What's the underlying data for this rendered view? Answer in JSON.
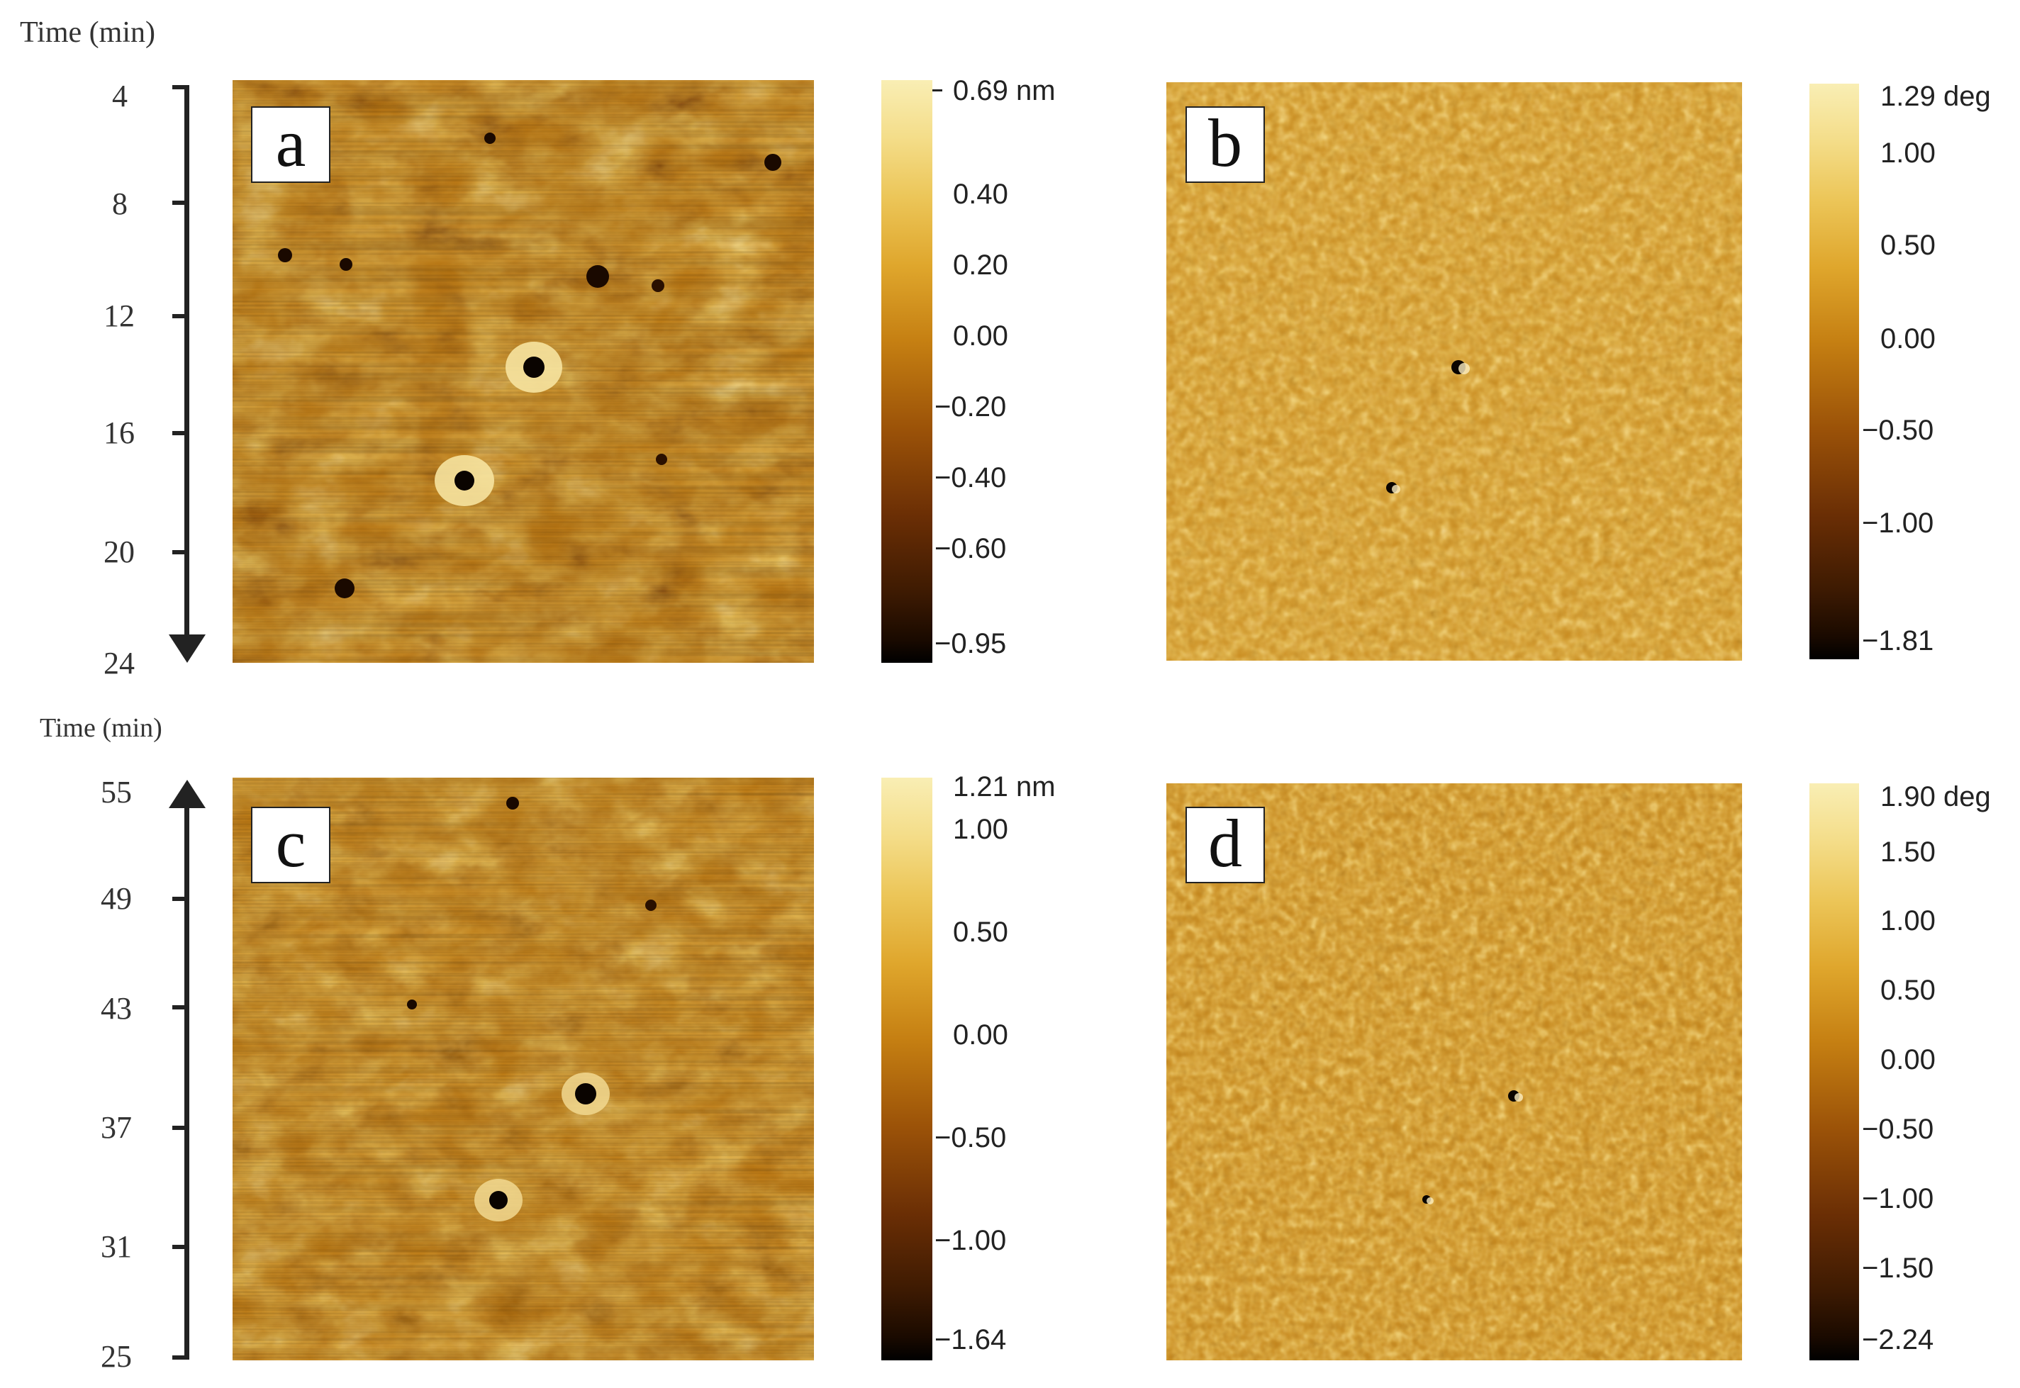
{
  "top_time_axis": {
    "title": "Time (min)",
    "ticks": [
      "4",
      "8",
      "12",
      "16",
      "20",
      "24"
    ],
    "direction": "down"
  },
  "bottom_time_axis": {
    "title": "Time (min)",
    "ticks": [
      "55",
      "49",
      "43",
      "37",
      "31",
      "25"
    ],
    "direction": "up"
  },
  "panels": [
    {
      "label": "a",
      "type": "height",
      "colorbar": [
        "0.69 nm",
        "0.40",
        "0.20",
        "0.00",
        "−0.20",
        "−0.40",
        "−0.60",
        "−0.95"
      ]
    },
    {
      "label": "b",
      "type": "phase",
      "colorbar": [
        "1.29 deg",
        "1.00",
        "0.50",
        "0.00",
        "−0.50",
        "−1.00",
        "−1.81"
      ]
    },
    {
      "label": "c",
      "type": "height",
      "colorbar": [
        "1.21 nm",
        "1.00",
        "0.50",
        "0.00",
        "−0.50",
        "−1.00",
        "−1.64"
      ]
    },
    {
      "label": "d",
      "type": "phase",
      "colorbar": [
        "1.90 deg",
        "1.50",
        "1.00",
        "0.50",
        "0.00",
        "−0.50",
        "−1.00",
        "−1.50",
        "−2.24"
      ]
    }
  ],
  "colors": {
    "colormap": [
      "#000000",
      "#3d1a02",
      "#9b5208",
      "#dfa62c",
      "#f9eeb4"
    ]
  }
}
